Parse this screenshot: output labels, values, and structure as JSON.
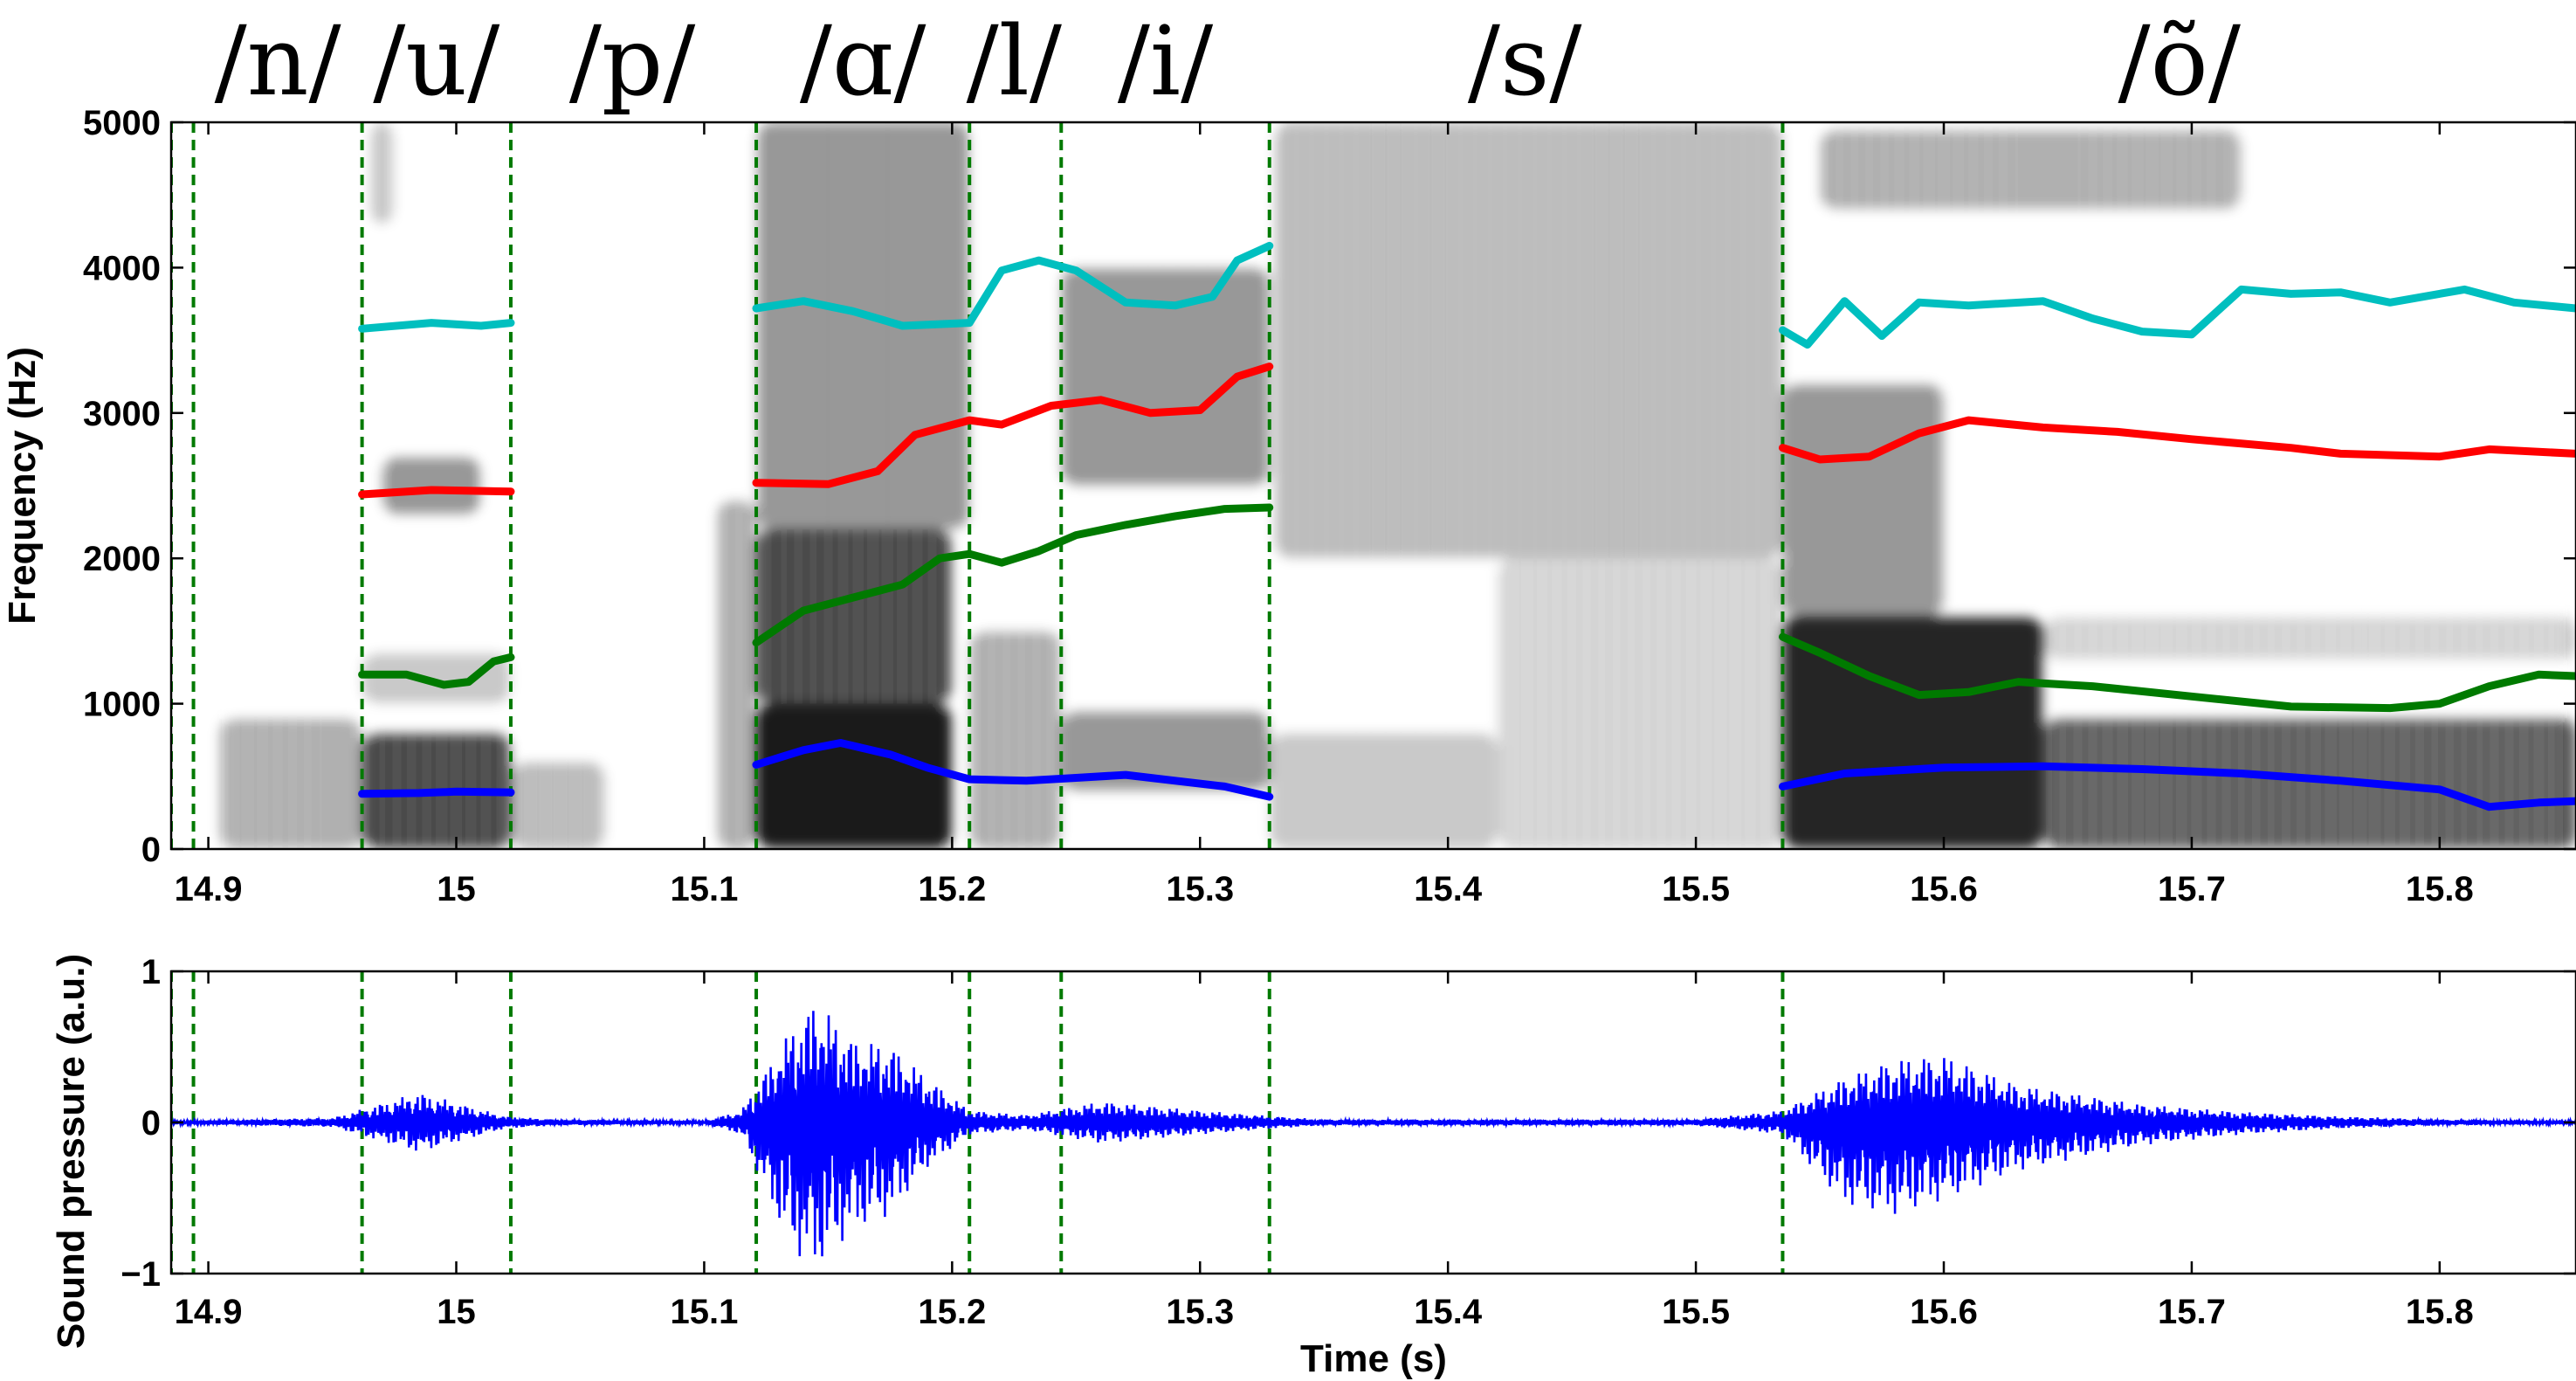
{
  "chart_data": [
    {
      "type": "heatmap",
      "subtype": "spectrogram",
      "ylabel": "Frequency (Hz)",
      "xlim": [
        14.885,
        15.855
      ],
      "ylim": [
        0,
        5000
      ],
      "xticks": [
        14.9,
        15.0,
        15.1,
        15.2,
        15.3,
        15.4,
        15.5,
        15.6,
        15.7,
        15.8
      ],
      "xtick_labels": [
        "14.9",
        "15",
        "15.1",
        "15.2",
        "15.3",
        "15.4",
        "15.5",
        "15.6",
        "15.7",
        "15.8"
      ],
      "yticks": [
        0,
        1000,
        2000,
        3000,
        4000,
        5000
      ],
      "ytick_labels": [
        "0",
        "1000",
        "2000",
        "3000",
        "4000",
        "5000"
      ],
      "colormap": "gray-reversed",
      "boundaries": [
        14.885,
        14.894,
        14.962,
        15.022,
        15.121,
        15.207,
        15.244,
        15.328,
        15.535
      ],
      "boundary_color": "#007a00",
      "phonemes": [
        {
          "label": "/n/",
          "t": 14.928
        },
        {
          "label": "/u/",
          "t": 14.992
        },
        {
          "label": "/p/",
          "t": 15.071
        },
        {
          "label": "/ɑ/",
          "t": 15.164
        },
        {
          "label": "/l/",
          "t": 15.225
        },
        {
          "label": "/i/",
          "t": 15.286
        },
        {
          "label": "/s/",
          "t": 15.431
        },
        {
          "label": "/õ/",
          "t": 15.695
        }
      ],
      "series": [
        {
          "color": "#0000ff",
          "segments": [
            {
              "x": [
                14.962,
                14.985,
                15.0,
                15.022
              ],
              "y": [
                380,
                385,
                395,
                390
              ]
            },
            {
              "x": [
                15.121,
                15.14,
                15.155,
                15.175,
                15.19,
                15.207,
                15.23,
                15.25,
                15.27,
                15.29,
                15.31,
                15.328
              ],
              "y": [
                580,
                680,
                730,
                650,
                560,
                480,
                470,
                490,
                510,
                470,
                430,
                360
              ]
            },
            {
              "x": [
                15.535,
                15.56,
                15.6,
                15.64,
                15.68,
                15.72,
                15.76,
                15.8,
                15.82,
                15.84,
                15.855
              ],
              "y": [
                430,
                520,
                560,
                570,
                550,
                520,
                470,
                410,
                290,
                320,
                330
              ]
            }
          ]
        },
        {
          "color": "#007a00",
          "segments": [
            {
              "x": [
                14.962,
                14.98,
                14.995,
                15.005,
                15.015,
                15.022
              ],
              "y": [
                1200,
                1200,
                1130,
                1150,
                1290,
                1320
              ]
            },
            {
              "x": [
                15.121,
                15.14,
                15.16,
                15.18,
                15.195,
                15.207,
                15.22,
                15.235,
                15.25,
                15.27,
                15.29,
                15.31,
                15.328
              ],
              "y": [
                1420,
                1640,
                1730,
                1820,
                2000,
                2030,
                1970,
                2050,
                2160,
                2230,
                2290,
                2340,
                2350
              ]
            },
            {
              "x": [
                15.535,
                15.55,
                15.57,
                15.59,
                15.61,
                15.63,
                15.66,
                15.7,
                15.74,
                15.78,
                15.8,
                15.82,
                15.84,
                15.855
              ],
              "y": [
                1460,
                1350,
                1190,
                1060,
                1080,
                1150,
                1120,
                1050,
                980,
                970,
                1000,
                1120,
                1200,
                1190
              ]
            }
          ]
        },
        {
          "color": "#ff0000",
          "segments": [
            {
              "x": [
                14.962,
                14.99,
                15.022
              ],
              "y": [
                2440,
                2470,
                2460
              ]
            },
            {
              "x": [
                15.121,
                15.15,
                15.17,
                15.185,
                15.207,
                15.22,
                15.24,
                15.26,
                15.28,
                15.3,
                15.315,
                15.328
              ],
              "y": [
                2520,
                2510,
                2600,
                2850,
                2950,
                2920,
                3050,
                3090,
                3000,
                3020,
                3250,
                3320
              ]
            },
            {
              "x": [
                15.535,
                15.55,
                15.57,
                15.59,
                15.61,
                15.64,
                15.67,
                15.7,
                15.74,
                15.76,
                15.8,
                15.82,
                15.855
              ],
              "y": [
                2760,
                2680,
                2700,
                2860,
                2950,
                2900,
                2870,
                2820,
                2760,
                2720,
                2700,
                2750,
                2720
              ]
            }
          ]
        },
        {
          "color": "#00bfbf",
          "segments": [
            {
              "x": [
                14.962,
                14.99,
                15.01,
                15.022
              ],
              "y": [
                3580,
                3620,
                3600,
                3620
              ]
            },
            {
              "x": [
                15.121,
                15.14,
                15.16,
                15.18,
                15.207,
                15.22,
                15.235,
                15.25,
                15.27,
                15.29,
                15.305,
                15.315,
                15.328
              ],
              "y": [
                3720,
                3770,
                3700,
                3600,
                3620,
                3980,
                4050,
                3980,
                3760,
                3740,
                3800,
                4050,
                4150
              ]
            },
            {
              "x": [
                15.535,
                15.545,
                15.56,
                15.575,
                15.59,
                15.61,
                15.64,
                15.66,
                15.68,
                15.7,
                15.72,
                15.74,
                15.76,
                15.78,
                15.81,
                15.83,
                15.855
              ],
              "y": [
                3570,
                3470,
                3770,
                3530,
                3760,
                3740,
                3770,
                3650,
                3560,
                3540,
                3850,
                3820,
                3830,
                3760,
                3850,
                3760,
                3720
              ]
            }
          ]
        }
      ]
    },
    {
      "type": "line",
      "subtype": "waveform",
      "xlabel": "Time (s)",
      "ylabel": "Sound pressure (a.u.)",
      "xlim": [
        14.885,
        15.855
      ],
      "ylim": [
        -1,
        1
      ],
      "xticks": [
        14.9,
        15.0,
        15.1,
        15.2,
        15.3,
        15.4,
        15.5,
        15.6,
        15.7,
        15.8
      ],
      "xtick_labels": [
        "14.9",
        "15",
        "15.1",
        "15.2",
        "15.3",
        "15.4",
        "15.5",
        "15.6",
        "15.7",
        "15.8"
      ],
      "yticks": [
        -1,
        0,
        1
      ],
      "ytick_labels": [
        "−1",
        "0",
        "1"
      ],
      "boundaries": [
        14.885,
        14.894,
        14.962,
        15.022,
        15.121,
        15.207,
        15.244,
        15.328,
        15.535
      ],
      "boundary_color": "#007a00",
      "color": "#0000ff",
      "envelope": {
        "t": [
          14.885,
          14.95,
          14.985,
          15.02,
          15.04,
          15.1,
          15.115,
          15.135,
          15.145,
          15.16,
          15.175,
          15.19,
          15.207,
          15.23,
          15.26,
          15.3,
          15.33,
          15.35,
          15.5,
          15.535,
          15.56,
          15.58,
          15.6,
          15.63,
          15.68,
          15.72,
          15.76,
          15.8,
          15.855
        ],
        "upper": [
          0.01,
          0.03,
          0.2,
          0.04,
          0.02,
          0.01,
          0.08,
          0.62,
          0.82,
          0.55,
          0.52,
          0.3,
          0.08,
          0.05,
          0.14,
          0.08,
          0.04,
          0.02,
          0.02,
          0.08,
          0.3,
          0.42,
          0.45,
          0.25,
          0.12,
          0.07,
          0.04,
          0.02,
          0.01
        ],
        "lower": [
          -0.01,
          -0.03,
          -0.2,
          -0.04,
          -0.02,
          -0.01,
          -0.08,
          -0.85,
          -0.98,
          -0.72,
          -0.62,
          -0.3,
          -0.08,
          -0.05,
          -0.14,
          -0.08,
          -0.04,
          -0.02,
          -0.02,
          -0.08,
          -0.55,
          -0.62,
          -0.52,
          -0.32,
          -0.15,
          -0.08,
          -0.04,
          -0.02,
          -0.01
        ]
      }
    }
  ]
}
